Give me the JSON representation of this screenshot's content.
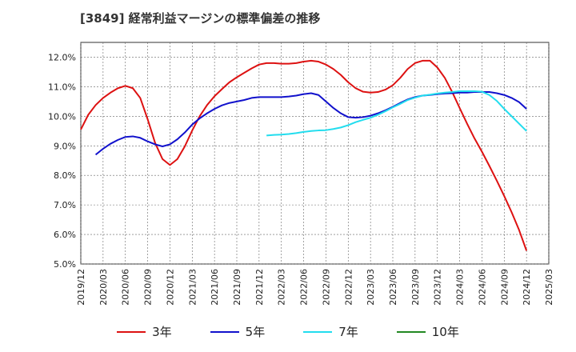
{
  "chart_data": {
    "type": "line",
    "title": "[3849]  経常利益マージンの標準偏差の推移",
    "xlabel": "",
    "ylabel": "",
    "ylim": [
      5.0,
      12.5
    ],
    "y_ticks": [
      "5.0%",
      "6.0%",
      "7.0%",
      "8.0%",
      "9.0%",
      "10.0%",
      "11.0%",
      "12.0%"
    ],
    "y_tick_values": [
      5,
      6,
      7,
      8,
      9,
      10,
      11,
      12
    ],
    "x_ticks": [
      "2019/12",
      "2020/03",
      "2020/06",
      "2020/09",
      "2020/12",
      "2021/03",
      "2021/06",
      "2021/09",
      "2021/12",
      "2022/03",
      "2022/06",
      "2022/09",
      "2022/12",
      "2023/03",
      "2023/06",
      "2023/09",
      "2023/12",
      "2024/03",
      "2024/06",
      "2024/09",
      "2024/12",
      "2025/03"
    ],
    "grid": true,
    "legend_position": "bottom",
    "series": [
      {
        "name": "3年",
        "color": "#dd1111",
        "points": [
          [
            "2019/12",
            9.55
          ],
          [
            "2020/01",
            10.05
          ],
          [
            "2020/02",
            10.38
          ],
          [
            "2020/03",
            10.62
          ],
          [
            "2020/04",
            10.8
          ],
          [
            "2020/05",
            10.95
          ],
          [
            "2020/06",
            11.03
          ],
          [
            "2020/07",
            10.95
          ],
          [
            "2020/08",
            10.62
          ],
          [
            "2020/09",
            9.9
          ],
          [
            "2020/10",
            9.1
          ],
          [
            "2020/11",
            8.55
          ],
          [
            "2020/12",
            8.35
          ],
          [
            "2021/01",
            8.55
          ],
          [
            "2021/02",
            8.98
          ],
          [
            "2021/03",
            9.52
          ],
          [
            "2021/04",
            10.0
          ],
          [
            "2021/05",
            10.38
          ],
          [
            "2021/06",
            10.68
          ],
          [
            "2021/07",
            10.92
          ],
          [
            "2021/08",
            11.15
          ],
          [
            "2021/09",
            11.32
          ],
          [
            "2021/10",
            11.47
          ],
          [
            "2021/11",
            11.62
          ],
          [
            "2021/12",
            11.75
          ],
          [
            "2022/01",
            11.8
          ],
          [
            "2022/02",
            11.8
          ],
          [
            "2022/03",
            11.78
          ],
          [
            "2022/04",
            11.78
          ],
          [
            "2022/05",
            11.8
          ],
          [
            "2022/06",
            11.85
          ],
          [
            "2022/07",
            11.88
          ],
          [
            "2022/08",
            11.85
          ],
          [
            "2022/09",
            11.75
          ],
          [
            "2022/10",
            11.6
          ],
          [
            "2022/11",
            11.4
          ],
          [
            "2022/12",
            11.15
          ],
          [
            "2023/01",
            10.95
          ],
          [
            "2023/02",
            10.83
          ],
          [
            "2023/03",
            10.8
          ],
          [
            "2023/04",
            10.82
          ],
          [
            "2023/05",
            10.9
          ],
          [
            "2023/06",
            11.05
          ],
          [
            "2023/07",
            11.3
          ],
          [
            "2023/08",
            11.6
          ],
          [
            "2023/09",
            11.8
          ],
          [
            "2023/10",
            11.88
          ],
          [
            "2023/11",
            11.88
          ],
          [
            "2023/12",
            11.65
          ],
          [
            "2024/01",
            11.3
          ],
          [
            "2024/02",
            10.82
          ],
          [
            "2024/03",
            10.28
          ],
          [
            "2024/04",
            9.75
          ],
          [
            "2024/05",
            9.25
          ],
          [
            "2024/06",
            8.8
          ],
          [
            "2024/07",
            8.32
          ],
          [
            "2024/08",
            7.82
          ],
          [
            "2024/09",
            7.3
          ],
          [
            "2024/10",
            6.75
          ],
          [
            "2024/11",
            6.15
          ],
          [
            "2024/12",
            5.45
          ]
        ]
      },
      {
        "name": "5年",
        "color": "#1111cc",
        "points": [
          [
            "2020/02",
            8.7
          ],
          [
            "2020/03",
            8.9
          ],
          [
            "2020/04",
            9.07
          ],
          [
            "2020/05",
            9.2
          ],
          [
            "2020/06",
            9.3
          ],
          [
            "2020/07",
            9.32
          ],
          [
            "2020/08",
            9.27
          ],
          [
            "2020/09",
            9.15
          ],
          [
            "2020/10",
            9.05
          ],
          [
            "2020/11",
            8.98
          ],
          [
            "2020/12",
            9.05
          ],
          [
            "2021/01",
            9.22
          ],
          [
            "2021/02",
            9.45
          ],
          [
            "2021/03",
            9.72
          ],
          [
            "2021/04",
            9.93
          ],
          [
            "2021/05",
            10.1
          ],
          [
            "2021/06",
            10.25
          ],
          [
            "2021/07",
            10.37
          ],
          [
            "2021/08",
            10.45
          ],
          [
            "2021/09",
            10.5
          ],
          [
            "2021/10",
            10.55
          ],
          [
            "2021/11",
            10.62
          ],
          [
            "2021/12",
            10.65
          ],
          [
            "2022/01",
            10.65
          ],
          [
            "2022/02",
            10.65
          ],
          [
            "2022/03",
            10.65
          ],
          [
            "2022/04",
            10.67
          ],
          [
            "2022/05",
            10.7
          ],
          [
            "2022/06",
            10.75
          ],
          [
            "2022/07",
            10.78
          ],
          [
            "2022/08",
            10.72
          ],
          [
            "2022/09",
            10.5
          ],
          [
            "2022/10",
            10.28
          ],
          [
            "2022/11",
            10.1
          ],
          [
            "2022/12",
            9.97
          ],
          [
            "2023/01",
            9.95
          ],
          [
            "2023/02",
            9.97
          ],
          [
            "2023/03",
            10.02
          ],
          [
            "2023/04",
            10.1
          ],
          [
            "2023/05",
            10.2
          ],
          [
            "2023/06",
            10.32
          ],
          [
            "2023/07",
            10.45
          ],
          [
            "2023/08",
            10.57
          ],
          [
            "2023/09",
            10.65
          ],
          [
            "2023/10",
            10.7
          ],
          [
            "2023/11",
            10.72
          ],
          [
            "2023/12",
            10.75
          ],
          [
            "2024/01",
            10.77
          ],
          [
            "2024/02",
            10.78
          ],
          [
            "2024/03",
            10.8
          ],
          [
            "2024/04",
            10.8
          ],
          [
            "2024/05",
            10.82
          ],
          [
            "2024/06",
            10.82
          ],
          [
            "2024/07",
            10.82
          ],
          [
            "2024/08",
            10.78
          ],
          [
            "2024/09",
            10.72
          ],
          [
            "2024/10",
            10.62
          ],
          [
            "2024/11",
            10.48
          ],
          [
            "2024/12",
            10.25
          ]
        ]
      },
      {
        "name": "7年",
        "color": "#22ddee",
        "points": [
          [
            "2022/01",
            9.35
          ],
          [
            "2022/02",
            9.37
          ],
          [
            "2022/03",
            9.38
          ],
          [
            "2022/04",
            9.4
          ],
          [
            "2022/05",
            9.43
          ],
          [
            "2022/06",
            9.47
          ],
          [
            "2022/07",
            9.5
          ],
          [
            "2022/08",
            9.52
          ],
          [
            "2022/09",
            9.53
          ],
          [
            "2022/10",
            9.57
          ],
          [
            "2022/11",
            9.62
          ],
          [
            "2022/12",
            9.7
          ],
          [
            "2023/01",
            9.8
          ],
          [
            "2023/02",
            9.88
          ],
          [
            "2023/03",
            9.95
          ],
          [
            "2023/04",
            10.05
          ],
          [
            "2023/05",
            10.17
          ],
          [
            "2023/06",
            10.3
          ],
          [
            "2023/07",
            10.42
          ],
          [
            "2023/08",
            10.55
          ],
          [
            "2023/09",
            10.63
          ],
          [
            "2023/10",
            10.7
          ],
          [
            "2023/11",
            10.73
          ],
          [
            "2023/12",
            10.77
          ],
          [
            "2024/01",
            10.8
          ],
          [
            "2024/02",
            10.82
          ],
          [
            "2024/03",
            10.85
          ],
          [
            "2024/04",
            10.85
          ],
          [
            "2024/05",
            10.85
          ],
          [
            "2024/06",
            10.83
          ],
          [
            "2024/07",
            10.72
          ],
          [
            "2024/08",
            10.52
          ],
          [
            "2024/09",
            10.25
          ],
          [
            "2024/10",
            10.0
          ],
          [
            "2024/11",
            9.75
          ],
          [
            "2024/12",
            9.5
          ]
        ]
      },
      {
        "name": "10年",
        "color": "#228822",
        "points": []
      }
    ]
  }
}
